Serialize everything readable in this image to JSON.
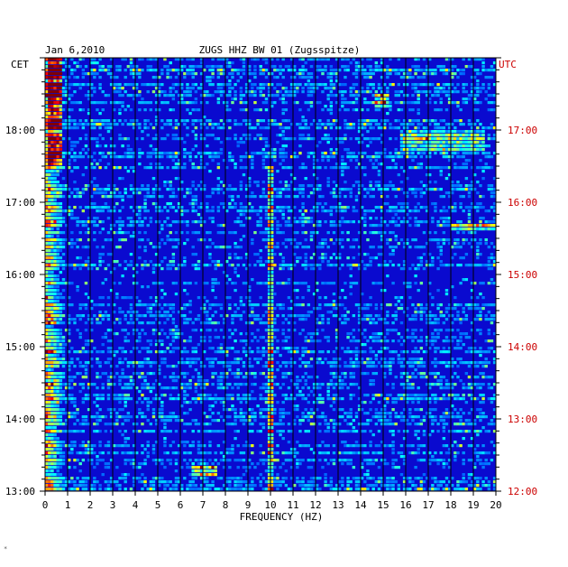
{
  "chart_data": {
    "type": "heatmap",
    "title": "ZUGS HHZ BW 01 (Zugsspitze)",
    "date": "Jan 6,2010",
    "xlabel": "FREQUENCY (HZ)",
    "left_axis_label": "CET",
    "right_axis_label": "UTC",
    "xlim": [
      0,
      20
    ],
    "x_ticks": [
      "0",
      "1",
      "2",
      "3",
      "4",
      "5",
      "6",
      "7",
      "8",
      "9",
      "10",
      "11",
      "12",
      "13",
      "14",
      "15",
      "16",
      "17",
      "18",
      "19",
      "20"
    ],
    "left_ticks": [
      {
        "label": "18:00",
        "hour": 18
      },
      {
        "label": "17:00",
        "hour": 17
      },
      {
        "label": "16:00",
        "hour": 16
      },
      {
        "label": "15:00",
        "hour": 15
      },
      {
        "label": "14:00",
        "hour": 14
      },
      {
        "label": "13:00",
        "hour": 13
      }
    ],
    "right_ticks": [
      {
        "label": "17:00",
        "hour": 17
      },
      {
        "label": "16:00",
        "hour": 16
      },
      {
        "label": "15:00",
        "hour": 15
      },
      {
        "label": "14:00",
        "hour": 14
      },
      {
        "label": "13:00",
        "hour": 13
      },
      {
        "label": "12:00",
        "hour": 12
      }
    ],
    "time_range_cet": [
      13,
      19
    ],
    "grid": true,
    "colors": {
      "background": "#0a0acf",
      "axis_text": "#000000",
      "utc_text": "#cc0000",
      "gridline": "#000000"
    },
    "colormap": [
      "#00008f",
      "#0000ff",
      "#0080ff",
      "#00ffff",
      "#80ff80",
      "#ffff00",
      "#ff8000",
      "#ff0000",
      "#800000"
    ],
    "notable_features": [
      {
        "freq_range": [
          0.1,
          0.7
        ],
        "time_range_cet": [
          17.5,
          19
        ],
        "intensity": 0.85
      },
      {
        "freq_range": [
          9.9,
          10.1
        ],
        "time_range_cet": [
          13,
          17.5
        ],
        "intensity": 0.55
      },
      {
        "freq_range": [
          6.5,
          7.6
        ],
        "time_range_cet": [
          13.2,
          13.35
        ],
        "intensity": 0.9
      },
      {
        "freq_range": [
          14.6,
          15.3
        ],
        "time_range_cet": [
          18.3,
          18.5
        ],
        "intensity": 0.6
      },
      {
        "freq_range": [
          15.8,
          19.5
        ],
        "time_range_cet": [
          17.7,
          18.0
        ],
        "intensity": 0.45
      },
      {
        "freq_range": [
          18.0,
          20.0
        ],
        "time_range_cet": [
          16.6,
          16.7
        ],
        "intensity": 0.6
      }
    ]
  }
}
